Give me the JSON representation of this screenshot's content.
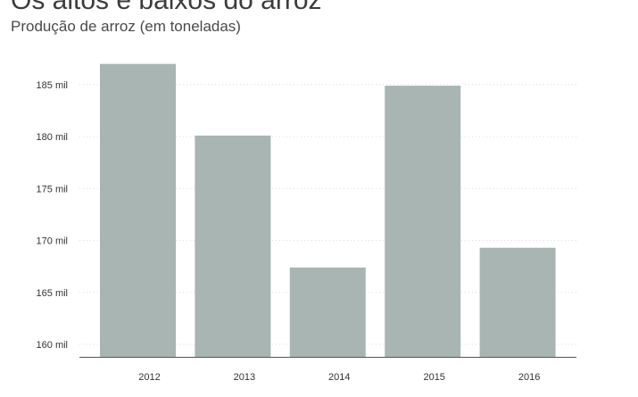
{
  "header": {
    "title": "Os altos e baixos do arroz",
    "subtitle": "Produção de arroz (em toneladas)"
  },
  "colors": {
    "bar": "#a8b5b3",
    "grid": "#d9d9d9",
    "axis": "#555555",
    "text": "#333333"
  },
  "chart_data": {
    "type": "bar",
    "title": "Os altos e baixos do arroz",
    "subtitle": "Produção de arroz (em toneladas)",
    "xlabel": "",
    "ylabel": "",
    "categories": [
      "2012",
      "2013",
      "2014",
      "2015",
      "2016"
    ],
    "values": [
      187000,
      180100,
      167400,
      184900,
      169300
    ],
    "ylim": [
      158800,
      188000
    ],
    "yticks": [
      160000,
      165000,
      170000,
      175000,
      180000,
      185000
    ],
    "ytick_labels": [
      "160 mil",
      "165 mil",
      "170 mil",
      "175 mil",
      "180 mil",
      "185 mil"
    ],
    "grid": true,
    "grid_style": "dotted",
    "legend": "none"
  }
}
